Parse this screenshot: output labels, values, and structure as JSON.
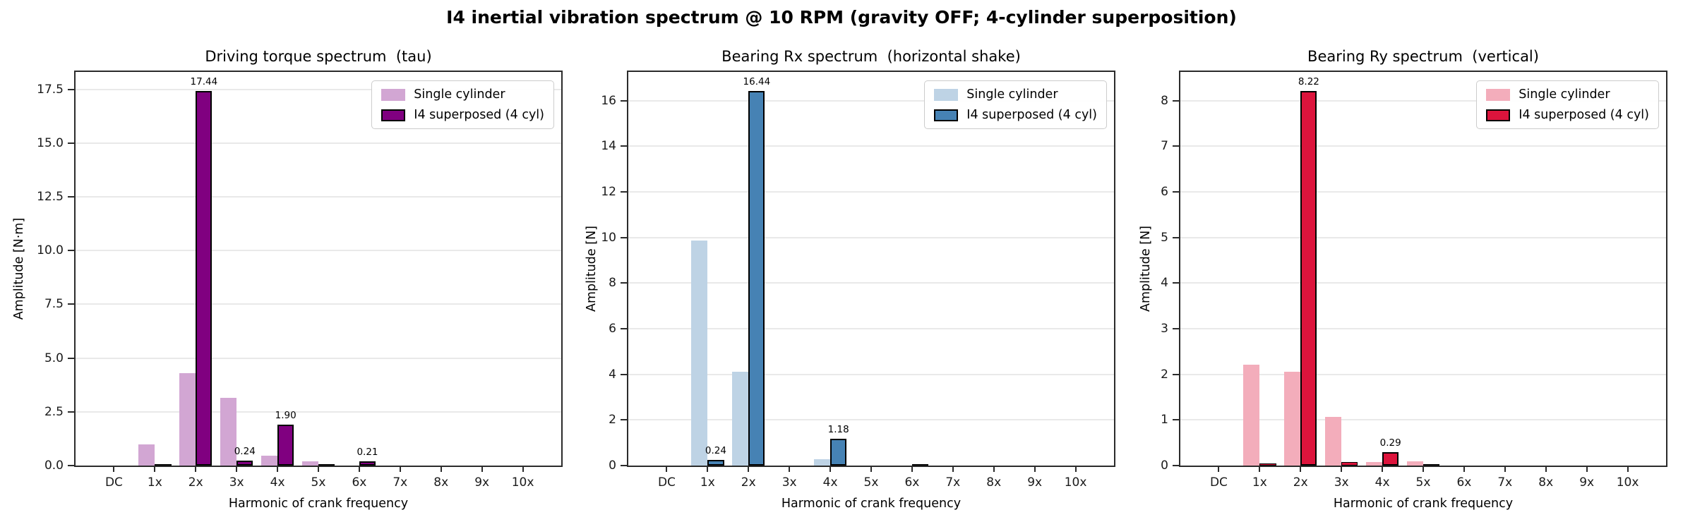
{
  "suptitle": "I4 inertial vibration spectrum @ 10 RPM (gravity OFF; 4-cylinder superposition)",
  "legend_entries": [
    "Single cylinder",
    "I4 superposed (4 cyl)"
  ],
  "chart_data": [
    {
      "type": "bar",
      "title": "Driving torque spectrum  (tau)",
      "xlabel": "Harmonic of crank frequency",
      "ylabel": "Amplitude [N·m]",
      "categories": [
        "DC",
        "1x",
        "2x",
        "3x",
        "4x",
        "5x",
        "6x",
        "7x",
        "8x",
        "9x",
        "10x"
      ],
      "ylim": [
        0,
        18.31
      ],
      "ytick_values": [
        0,
        2.5,
        5.0,
        7.5,
        10.0,
        12.5,
        15.0,
        17.5
      ],
      "ytick_labels": [
        "0.0",
        "2.5",
        "5.0",
        "7.5",
        "10.0",
        "12.5",
        "15.0",
        "17.5"
      ],
      "grid": true,
      "legend_position": "upper right",
      "series": [
        {
          "name": "Single cylinder",
          "color": "#D2A6D3",
          "values": [
            0,
            1.0,
            4.31,
            3.16,
            0.46,
            0.21,
            0,
            0,
            0,
            0,
            0
          ]
        },
        {
          "name": "I4 superposed (4 cyl)",
          "color": "#800080",
          "edge_color": "#000000",
          "values": [
            0,
            0.02,
            17.44,
            0.24,
            1.9,
            0.02,
            0.21,
            0,
            0,
            0,
            0
          ],
          "bar_labels": [
            "",
            "",
            "17.44",
            "0.24",
            "1.90",
            "",
            "0.21",
            "",
            "",
            "",
            ""
          ]
        }
      ]
    },
    {
      "type": "bar",
      "title": "Bearing Rx spectrum  (horizontal shake)",
      "xlabel": "Harmonic of crank frequency",
      "ylabel": "Amplitude [N]",
      "categories": [
        "DC",
        "1x",
        "2x",
        "3x",
        "4x",
        "5x",
        "6x",
        "7x",
        "8x",
        "9x",
        "10x"
      ],
      "ylim": [
        0,
        17.26
      ],
      "ytick_values": [
        0,
        2,
        4,
        6,
        8,
        10,
        12,
        14,
        16
      ],
      "ytick_labels": [
        "0",
        "2",
        "4",
        "6",
        "8",
        "10",
        "12",
        "14",
        "16"
      ],
      "grid": true,
      "legend_position": "upper right",
      "series": [
        {
          "name": "Single cylinder",
          "color": "#BED3E5",
          "values": [
            0,
            9.86,
            4.11,
            0,
            0.28,
            0,
            0,
            0,
            0,
            0,
            0
          ]
        },
        {
          "name": "I4 superposed (4 cyl)",
          "color": "#4682B4",
          "edge_color": "#000000",
          "values": [
            0,
            0.24,
            16.44,
            0,
            1.18,
            0,
            0.07,
            0,
            0,
            0,
            0
          ],
          "bar_labels": [
            "",
            "0.24",
            "16.44",
            "",
            "1.18",
            "",
            "",
            "",
            "",
            "",
            ""
          ]
        }
      ]
    },
    {
      "type": "bar",
      "title": "Bearing Ry spectrum  (vertical)",
      "xlabel": "Harmonic of crank frequency",
      "ylabel": "Amplitude [N]",
      "categories": [
        "DC",
        "1x",
        "2x",
        "3x",
        "4x",
        "5x",
        "6x",
        "7x",
        "8x",
        "9x",
        "10x"
      ],
      "ylim": [
        0,
        8.63
      ],
      "ytick_values": [
        0,
        1,
        2,
        3,
        4,
        5,
        6,
        7,
        8
      ],
      "ytick_labels": [
        "0",
        "1",
        "2",
        "3",
        "4",
        "5",
        "6",
        "7",
        "8"
      ],
      "grid": true,
      "legend_position": "upper right",
      "series": [
        {
          "name": "Single cylinder",
          "color": "#F3ADBB",
          "values": [
            0,
            2.21,
            2.06,
            1.07,
            0.08,
            0.1,
            0,
            0,
            0,
            0,
            0
          ]
        },
        {
          "name": "I4 superposed (4 cyl)",
          "color": "#DC143C",
          "edge_color": "#000000",
          "values": [
            0,
            0.04,
            8.22,
            0.07,
            0.29,
            0.01,
            0,
            0,
            0,
            0,
            0
          ],
          "bar_labels": [
            "",
            "",
            "8.22",
            "",
            "0.29",
            "",
            "",
            "",
            "",
            "",
            ""
          ]
        }
      ]
    }
  ]
}
